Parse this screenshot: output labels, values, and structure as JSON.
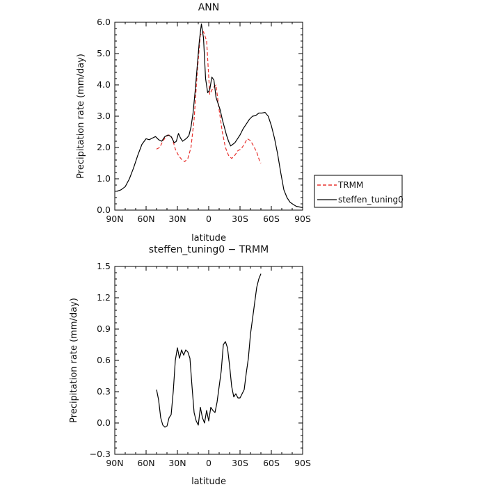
{
  "chart_data": [
    {
      "type": "line",
      "title": "ANN",
      "xlabel": "latitude",
      "ylabel": "Precipitation rate (mm/day)",
      "xlim": [
        90,
        -90
      ],
      "ylim": [
        0.0,
        6.0
      ],
      "xticks": [
        90,
        60,
        30,
        0,
        -30,
        -60,
        -90
      ],
      "xtick_labels": [
        "90N",
        "60N",
        "30N",
        "0",
        "30S",
        "60S",
        "90S"
      ],
      "yticks": [
        0,
        1,
        2,
        3,
        4,
        5,
        6
      ],
      "ytick_labels": [
        "0.0",
        "1.0",
        "2.0",
        "3.0",
        "4.0",
        "5.0",
        "6.0"
      ],
      "grid": false,
      "legend": "outside-right",
      "series": [
        {
          "name": "TRMM",
          "color": "#e8322e",
          "dash": "dashed",
          "x": [
            50,
            47,
            44,
            41,
            38,
            35,
            32,
            29,
            26,
            23,
            20,
            17,
            14,
            11,
            8,
            5,
            2,
            -1,
            -4,
            -7,
            -10,
            -13,
            -16,
            -19,
            -22,
            -25,
            -28,
            -31,
            -34,
            -37,
            -40,
            -43,
            -46,
            -49,
            -50
          ],
          "y": [
            1.95,
            2.0,
            2.2,
            2.35,
            2.4,
            2.3,
            1.95,
            1.75,
            1.62,
            1.55,
            1.65,
            2.0,
            2.9,
            4.4,
            5.6,
            5.7,
            5.4,
            3.7,
            3.9,
            4.0,
            3.2,
            2.5,
            2.0,
            1.75,
            1.65,
            1.75,
            1.9,
            1.95,
            2.1,
            2.28,
            2.22,
            2.05,
            1.85,
            1.55,
            1.5
          ]
        },
        {
          "name": "steffen_tuning0",
          "color": "#000000",
          "dash": "solid",
          "x": [
            88,
            84,
            80,
            76,
            72,
            68,
            64,
            60,
            57,
            54,
            51,
            48,
            45,
            42,
            39,
            36,
            33,
            31,
            29,
            27,
            25,
            23,
            21,
            19,
            17,
            15,
            13,
            11,
            9,
            7,
            5,
            3,
            1,
            -1,
            -3,
            -5,
            -7,
            -9,
            -11,
            -13,
            -15,
            -17,
            -19,
            -21,
            -23,
            -25,
            -27,
            -30,
            -33,
            -36,
            -39,
            -42,
            -45,
            -48,
            -51,
            -54,
            -57,
            -60,
            -63,
            -66,
            -69,
            -72,
            -75,
            -78,
            -81,
            -84,
            -87,
            -90
          ],
          "y": [
            0.6,
            0.65,
            0.75,
            1.0,
            1.35,
            1.75,
            2.1,
            2.28,
            2.25,
            2.3,
            2.35,
            2.25,
            2.2,
            2.35,
            2.4,
            2.35,
            2.15,
            2.2,
            2.45,
            2.3,
            2.2,
            2.25,
            2.3,
            2.38,
            2.65,
            3.1,
            3.8,
            4.6,
            5.4,
            5.95,
            5.5,
            4.2,
            3.75,
            3.85,
            4.25,
            4.15,
            3.6,
            3.4,
            3.2,
            2.9,
            2.65,
            2.4,
            2.2,
            2.05,
            2.1,
            2.15,
            2.25,
            2.4,
            2.6,
            2.75,
            2.9,
            3.0,
            3.02,
            3.1,
            3.1,
            3.12,
            3.0,
            2.7,
            2.3,
            1.8,
            1.2,
            0.65,
            0.4,
            0.25,
            0.18,
            0.12,
            0.1,
            0.08
          ]
        }
      ]
    },
    {
      "type": "line",
      "title": "steffen_tuning0 − TRMM",
      "xlabel": "latitude",
      "ylabel": "Precipitation rate (mm/day)",
      "xlim": [
        90,
        -90
      ],
      "ylim": [
        -0.3,
        1.5
      ],
      "xticks": [
        90,
        60,
        30,
        0,
        -30,
        -60,
        -90
      ],
      "xtick_labels": [
        "90N",
        "60N",
        "30N",
        "0",
        "30S",
        "60S",
        "90S"
      ],
      "yticks": [
        -0.3,
        0.0,
        0.3,
        0.6,
        0.9,
        1.2,
        1.5
      ],
      "ytick_labels": [
        "−0.3",
        "0.0",
        "0.3",
        "0.6",
        "0.9",
        "1.2",
        "1.5"
      ],
      "grid": false,
      "series": [
        {
          "color": "#000000",
          "dash": "solid",
          "x": [
            50,
            48,
            46,
            44,
            42,
            40,
            38,
            36,
            34,
            32,
            30,
            28,
            26,
            24,
            22,
            20,
            18,
            16,
            14,
            12,
            10,
            8,
            6,
            4,
            2,
            0,
            -2,
            -4,
            -6,
            -8,
            -10,
            -12,
            -14,
            -16,
            -18,
            -20,
            -22,
            -24,
            -26,
            -28,
            -30,
            -32,
            -34,
            -36,
            -38,
            -40,
            -42,
            -44,
            -46,
            -48,
            -50
          ],
          "y": [
            0.32,
            0.22,
            0.05,
            -0.02,
            -0.04,
            -0.03,
            0.05,
            0.08,
            0.3,
            0.6,
            0.72,
            0.62,
            0.7,
            0.65,
            0.7,
            0.68,
            0.62,
            0.35,
            0.1,
            0.02,
            -0.02,
            0.15,
            0.05,
            0.0,
            0.12,
            0.02,
            0.15,
            0.12,
            0.1,
            0.2,
            0.35,
            0.5,
            0.75,
            0.78,
            0.72,
            0.55,
            0.35,
            0.25,
            0.28,
            0.24,
            0.24,
            0.28,
            0.32,
            0.48,
            0.62,
            0.85,
            1.0,
            1.15,
            1.3,
            1.38,
            1.43
          ]
        }
      ]
    }
  ]
}
